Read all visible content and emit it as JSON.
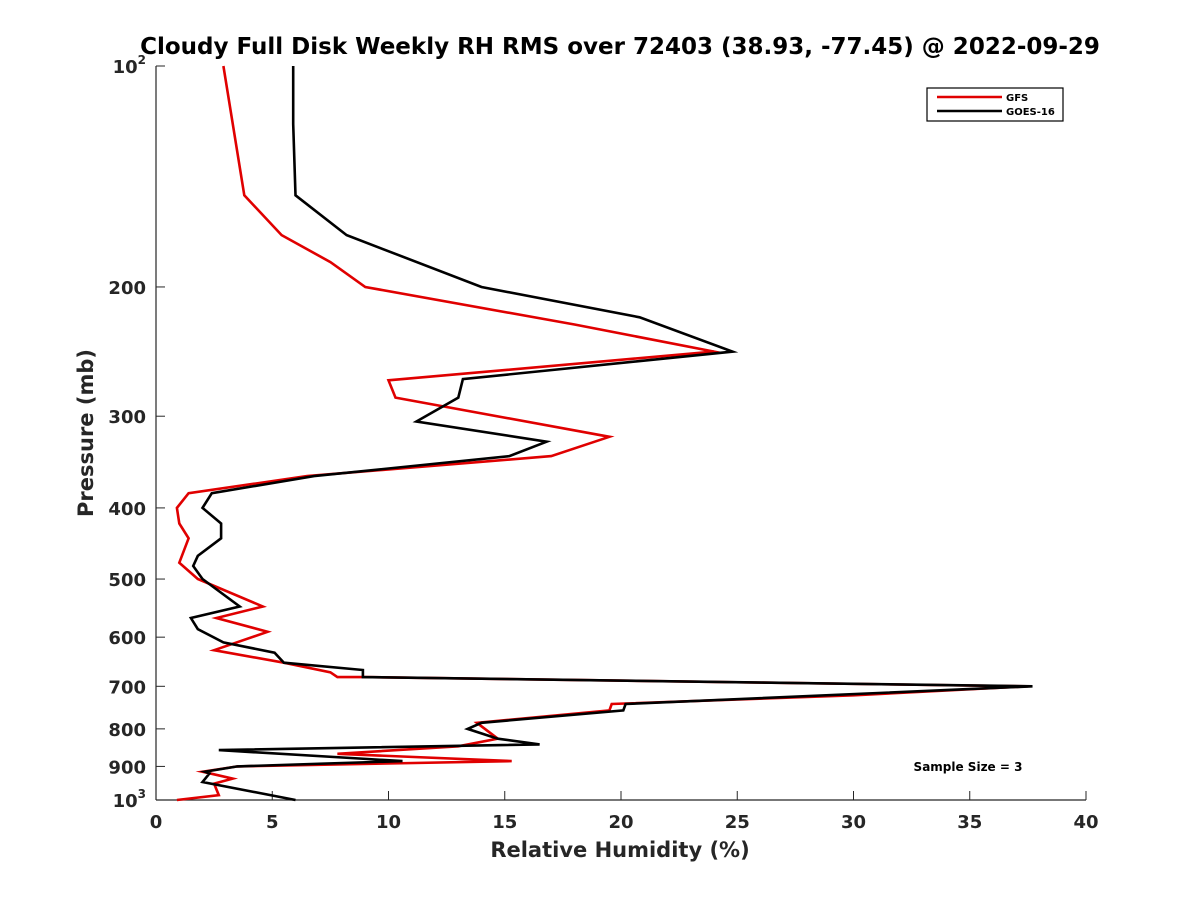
{
  "chart_data": {
    "type": "line",
    "title": "Cloudy Full Disk Weekly RH RMS over 72403 (38.93, -77.45) @ 2022-09-29",
    "xlabel": "Relative Humidity (%)",
    "ylabel": "Pressure (mb)",
    "xlim": [
      0,
      40
    ],
    "ylim": [
      100,
      1000
    ],
    "y_scale": "log",
    "y_reversed": true,
    "x_ticks": [
      0,
      5,
      10,
      15,
      20,
      25,
      30,
      35,
      40
    ],
    "y_ticks": [
      {
        "value": 100,
        "label": "10",
        "sup": "2"
      },
      {
        "value": 200,
        "label": "200"
      },
      {
        "value": 300,
        "label": "300"
      },
      {
        "value": 400,
        "label": "400"
      },
      {
        "value": 500,
        "label": "500"
      },
      {
        "value": 600,
        "label": "600"
      },
      {
        "value": 700,
        "label": "700"
      },
      {
        "value": 800,
        "label": "800"
      },
      {
        "value": 900,
        "label": "900"
      },
      {
        "value": 1000,
        "label": "10",
        "sup": "3"
      }
    ],
    "grid": false,
    "legend_position": "top-right",
    "annotation": "Sample Size = 3",
    "series": [
      {
        "name": "GFS",
        "color": "#e00000",
        "points": [
          [
            2.9,
            100
          ],
          [
            3.8,
            150
          ],
          [
            5.4,
            170
          ],
          [
            7.5,
            185
          ],
          [
            9.0,
            200
          ],
          [
            18.0,
            225
          ],
          [
            24.0,
            245
          ],
          [
            10.0,
            268
          ],
          [
            10.3,
            283
          ],
          [
            19.5,
            320
          ],
          [
            17.0,
            340
          ],
          [
            6.5,
            362
          ],
          [
            1.4,
            382
          ],
          [
            0.9,
            400
          ],
          [
            1.0,
            420
          ],
          [
            1.4,
            440
          ],
          [
            1.0,
            475
          ],
          [
            1.8,
            500
          ],
          [
            4.6,
            545
          ],
          [
            2.6,
            565
          ],
          [
            4.8,
            590
          ],
          [
            2.5,
            625
          ],
          [
            5.5,
            650
          ],
          [
            7.5,
            670
          ],
          [
            7.8,
            680
          ],
          [
            9.0,
            680
          ],
          [
            37.5,
            700
          ],
          [
            30.0,
            720
          ],
          [
            19.6,
            740
          ],
          [
            19.5,
            755
          ],
          [
            13.8,
            785
          ],
          [
            14.7,
            825
          ],
          [
            13.0,
            845
          ],
          [
            7.8,
            865
          ],
          [
            15.3,
            885
          ],
          [
            3.5,
            900
          ],
          [
            2.0,
            915
          ],
          [
            3.3,
            935
          ],
          [
            2.5,
            950
          ],
          [
            2.7,
            985
          ],
          [
            0.9,
            1000
          ]
        ]
      },
      {
        "name": "GOES-16",
        "color": "#000000",
        "points": [
          [
            5.9,
            100
          ],
          [
            5.9,
            120
          ],
          [
            6.0,
            150
          ],
          [
            8.2,
            170
          ],
          [
            14.0,
            200
          ],
          [
            20.8,
            220
          ],
          [
            24.8,
            245
          ],
          [
            13.2,
            267
          ],
          [
            13.0,
            283
          ],
          [
            11.2,
            305
          ],
          [
            16.8,
            325
          ],
          [
            15.2,
            340
          ],
          [
            6.8,
            362
          ],
          [
            2.4,
            382
          ],
          [
            2.0,
            400
          ],
          [
            2.8,
            420
          ],
          [
            2.8,
            440
          ],
          [
            1.8,
            465
          ],
          [
            1.6,
            480
          ],
          [
            2.0,
            500
          ],
          [
            3.6,
            545
          ],
          [
            1.5,
            565
          ],
          [
            1.8,
            585
          ],
          [
            2.9,
            610
          ],
          [
            5.1,
            630
          ],
          [
            5.5,
            650
          ],
          [
            8.9,
            665
          ],
          [
            8.9,
            680
          ],
          [
            37.7,
            700
          ],
          [
            20.2,
            740
          ],
          [
            20.1,
            755
          ],
          [
            14.0,
            785
          ],
          [
            13.4,
            800
          ],
          [
            14.7,
            825
          ],
          [
            16.5,
            840
          ],
          [
            2.7,
            855
          ],
          [
            10.6,
            885
          ],
          [
            3.5,
            900
          ],
          [
            2.1,
            915
          ],
          [
            2.3,
            920
          ],
          [
            2.0,
            945
          ],
          [
            6.0,
            1000
          ]
        ]
      }
    ]
  }
}
